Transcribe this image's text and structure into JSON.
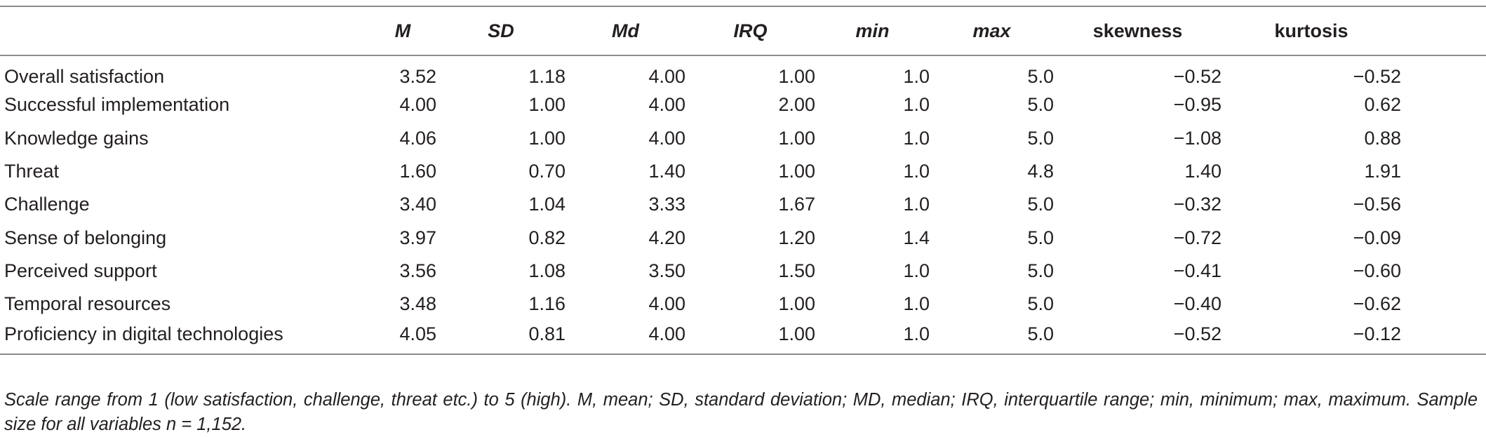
{
  "table": {
    "columns": [
      "M",
      "SD",
      "Md",
      "IRQ",
      "min",
      "max",
      "skewness",
      "kurtosis"
    ],
    "rows": [
      {
        "label": "Overall satisfaction",
        "values": [
          "3.52",
          "1.18",
          "4.00",
          "1.00",
          "1.0",
          "5.0",
          "−0.52",
          "−0.52"
        ]
      },
      {
        "label": "Successful implementation",
        "values": [
          "4.00",
          "1.00",
          "4.00",
          "2.00",
          "1.0",
          "5.0",
          "−0.95",
          "0.62"
        ]
      },
      {
        "label": "Knowledge gains",
        "values": [
          "4.06",
          "1.00",
          "4.00",
          "1.00",
          "1.0",
          "5.0",
          "−1.08",
          "0.88"
        ]
      },
      {
        "label": "Threat",
        "values": [
          "1.60",
          "0.70",
          "1.40",
          "1.00",
          "1.0",
          "4.8",
          "1.40",
          "1.91"
        ]
      },
      {
        "label": "Challenge",
        "values": [
          "3.40",
          "1.04",
          "3.33",
          "1.67",
          "1.0",
          "5.0",
          "−0.32",
          "−0.56"
        ]
      },
      {
        "label": "Sense of belonging",
        "values": [
          "3.97",
          "0.82",
          "4.20",
          "1.20",
          "1.4",
          "5.0",
          "−0.72",
          "−0.09"
        ]
      },
      {
        "label": "Perceived support",
        "values": [
          "3.56",
          "1.08",
          "3.50",
          "1.50",
          "1.0",
          "5.0",
          "−0.41",
          "−0.60"
        ]
      },
      {
        "label": "Temporal resources",
        "values": [
          "3.48",
          "1.16",
          "4.00",
          "1.00",
          "1.0",
          "5.0",
          "−0.40",
          "−0.62"
        ]
      },
      {
        "label": "Proficiency in digital technologies",
        "values": [
          "4.05",
          "0.81",
          "4.00",
          "1.00",
          "1.0",
          "5.0",
          "−0.52",
          "−0.12"
        ]
      }
    ]
  },
  "note": "Scale range from 1 (low satisfaction, challenge, threat etc.) to 5 (high). M, mean; SD, standard deviation; MD, median; IRQ, interquartile range; min, minimum; max, maximum. Sample size for all variables n = 1,152."
}
